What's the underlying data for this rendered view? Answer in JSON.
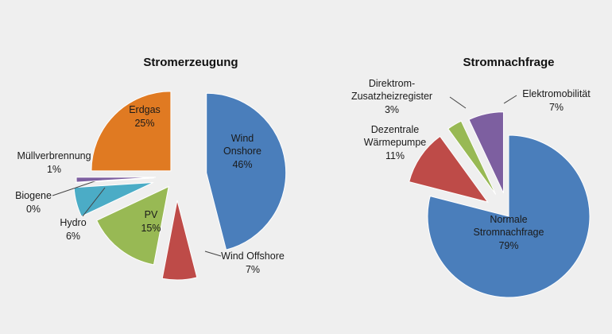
{
  "chart_data": [
    {
      "type": "pie",
      "title": "Stromerzeugung",
      "categories": [
        "Wind Onshore",
        "Wind Offshore",
        "PV",
        "Hydro",
        "Biogene",
        "Müllverbrennung",
        "Erdgas"
      ],
      "values": [
        46,
        7,
        15,
        6,
        0,
        1,
        25
      ],
      "value_labels": [
        "46%",
        "7%",
        "15%",
        "6%",
        "0%",
        "1%",
        "25%"
      ],
      "colors": [
        "#4a7ebb",
        "#be4b48",
        "#98b954",
        "#4bacc6",
        "#8c8c8c",
        "#7d5fa0",
        "#e07a22"
      ]
    },
    {
      "type": "pie",
      "title": "Stromnachfrage",
      "categories": [
        "Normale Stromnachfrage",
        "Dezentrale Wärmepumpe",
        "Direktrom-Zusatzheizregister",
        "Elektromobilität"
      ],
      "values": [
        79,
        11,
        3,
        7
      ],
      "value_labels": [
        "79%",
        "11%",
        "3%",
        "7%"
      ],
      "colors": [
        "#4a7ebb",
        "#be4b48",
        "#98b954",
        "#7d5fa0"
      ]
    }
  ]
}
